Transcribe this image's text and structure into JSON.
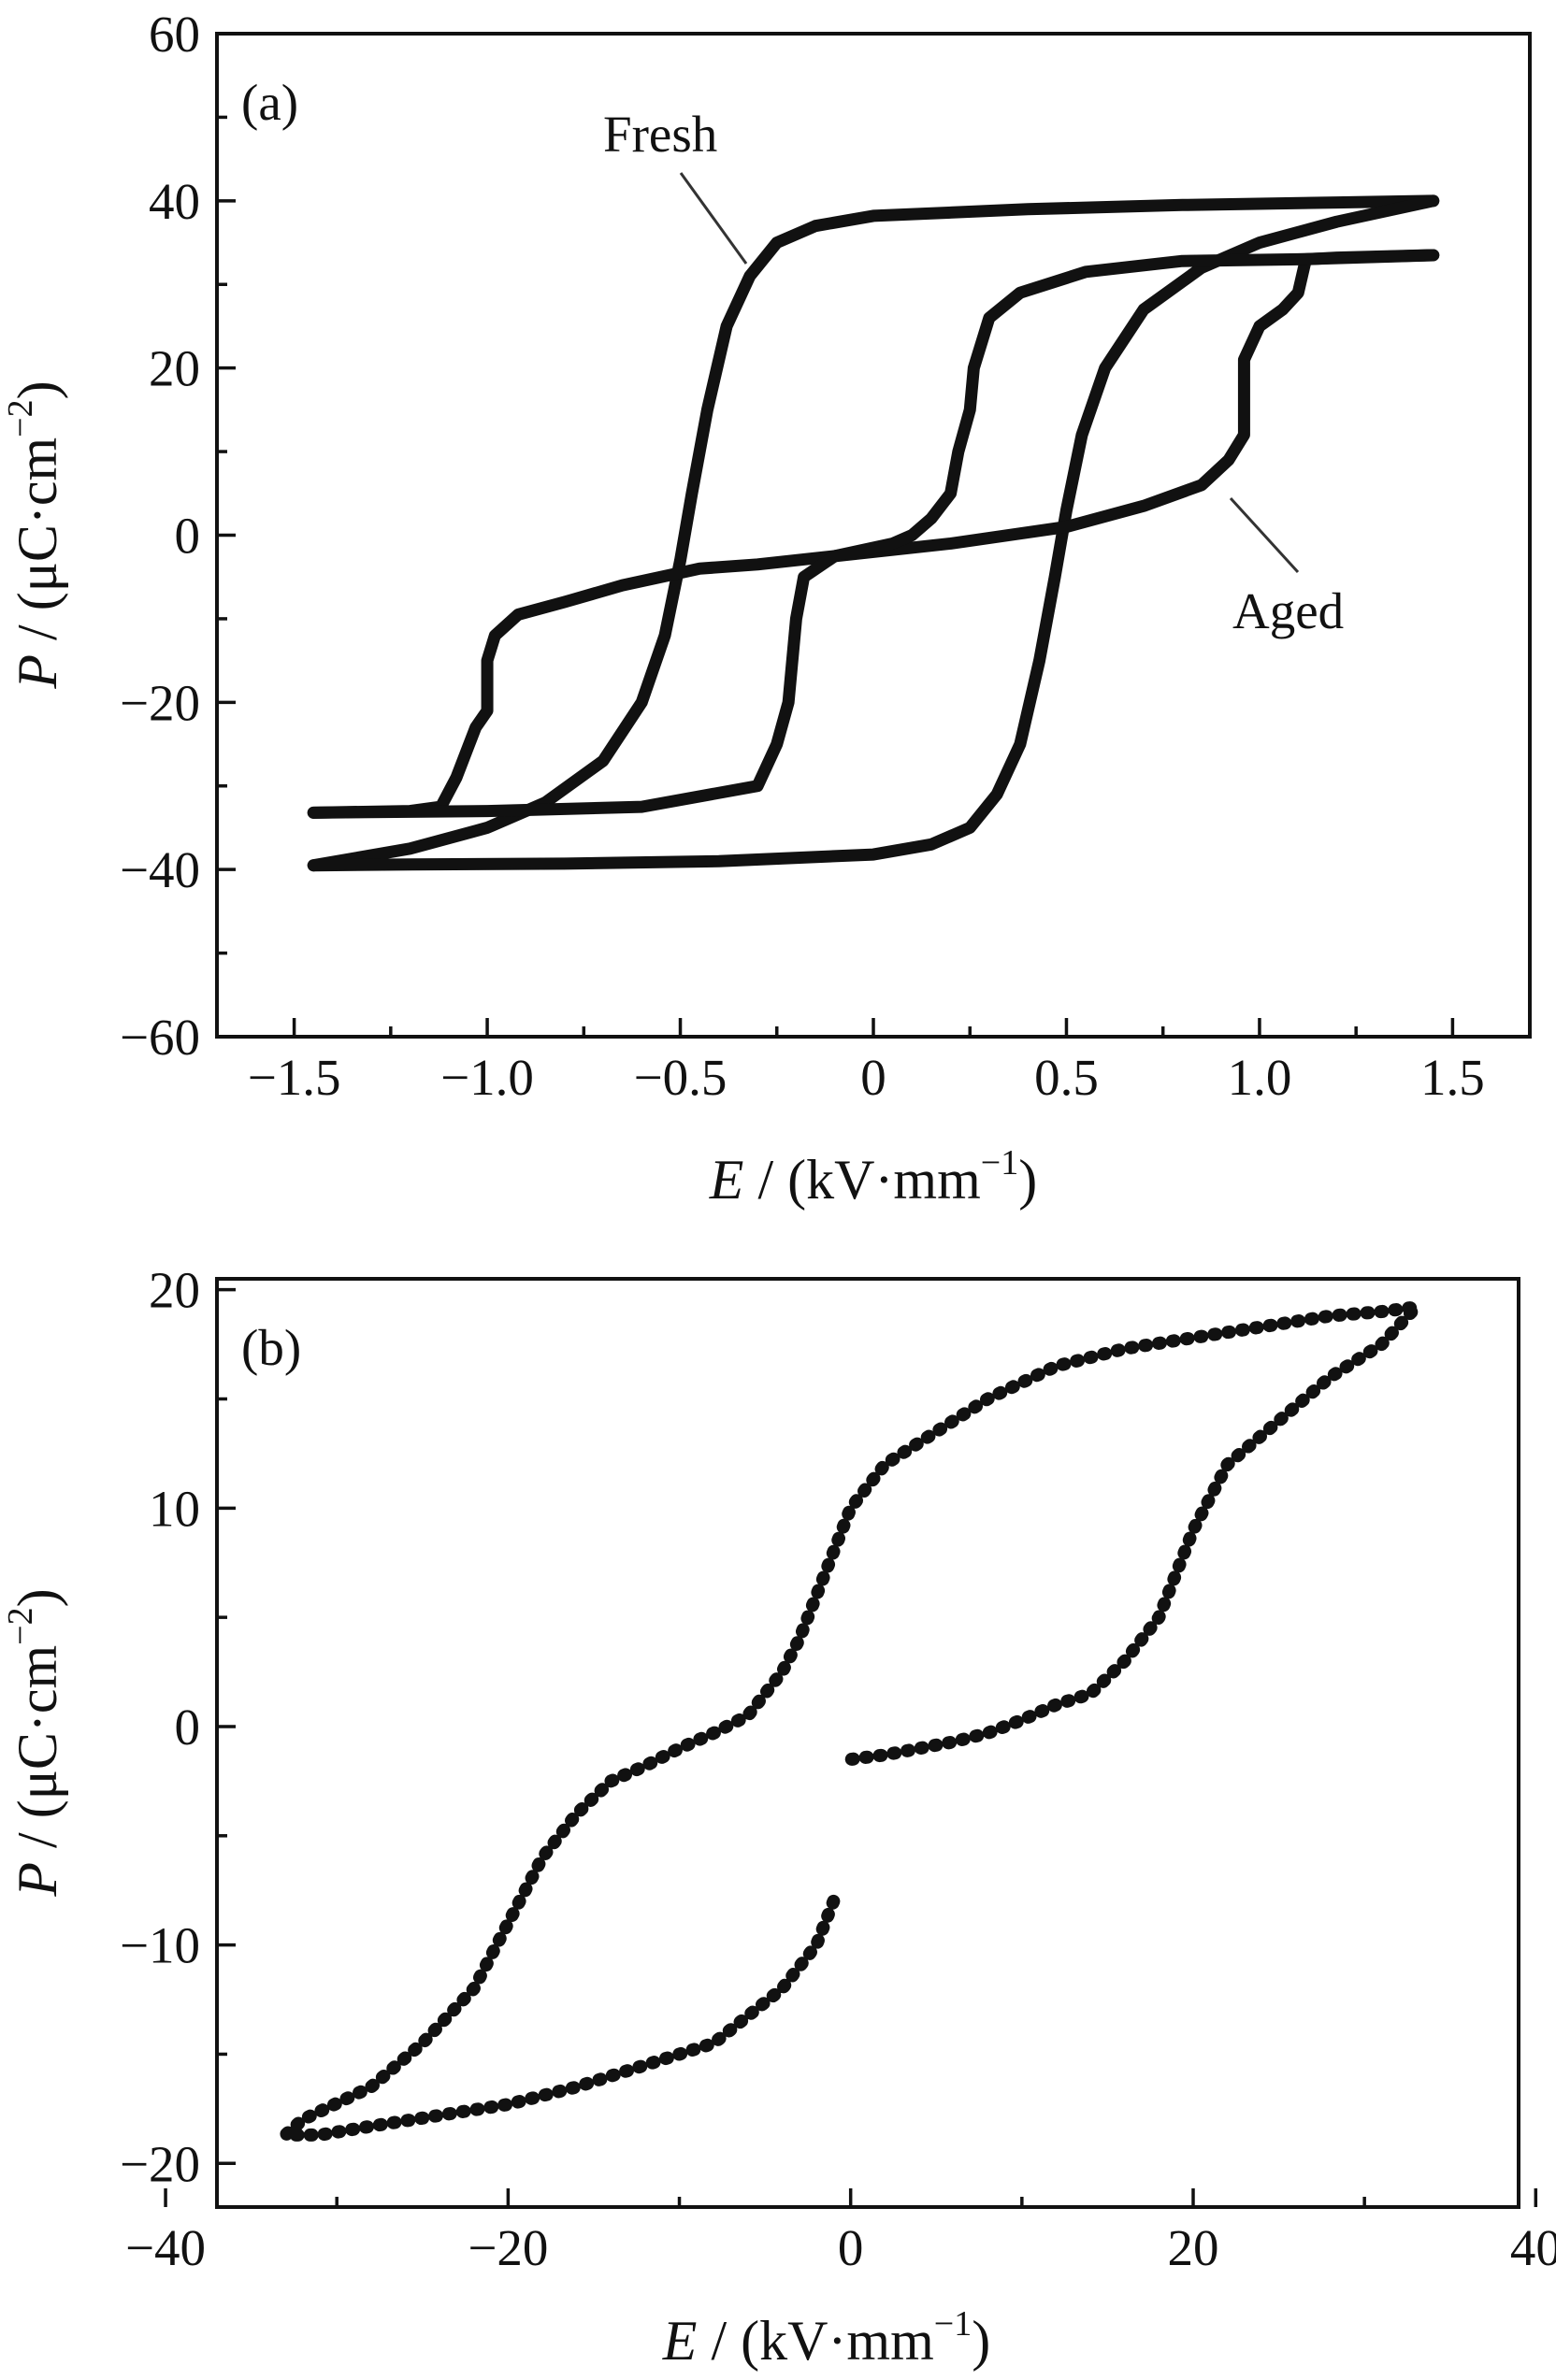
{
  "chart_data": [
    {
      "type": "line",
      "panel_label": "(a)",
      "xlabel": {
        "symbol": "E",
        "unit_open": " / (kV·mm",
        "unit_exp": "−1",
        "unit_close": ")"
      },
      "ylabel": {
        "symbol": "P",
        "unit_open": " / (μC·cm",
        "unit_exp": "−2",
        "unit_close": ")"
      },
      "xlim": [
        -1.7,
        1.7
      ],
      "ylim": [
        -60,
        60
      ],
      "xticks": [
        -1.5,
        -1.0,
        -0.5,
        0,
        0.5,
        1.0,
        1.5
      ],
      "xtick_labels": [
        "−1.5",
        "−1.0",
        "−0.5",
        "0",
        "0.5",
        "1.0",
        "1.5"
      ],
      "yticks": [
        -60,
        -40,
        -20,
        0,
        20,
        40,
        60
      ],
      "ytick_labels": [
        "−60",
        "−40",
        "−20",
        "0",
        "20",
        "40",
        "60"
      ],
      "annotations": [
        {
          "text": "Fresh",
          "target_series": "fresh"
        },
        {
          "text": "Aged",
          "target_series": "aged"
        }
      ],
      "series": [
        {
          "id": "fresh",
          "descending": [
            [
              1.45,
              40
            ],
            [
              1.2,
              39.8
            ],
            [
              0.8,
              39.5
            ],
            [
              0.4,
              39
            ],
            [
              0.0,
              38.2
            ],
            [
              -0.15,
              37
            ],
            [
              -0.25,
              35
            ],
            [
              -0.32,
              31
            ],
            [
              -0.38,
              25
            ],
            [
              -0.43,
              15
            ],
            [
              -0.47,
              5
            ],
            [
              -0.5,
              -3
            ],
            [
              -0.54,
              -12
            ],
            [
              -0.6,
              -20
            ],
            [
              -0.7,
              -27
            ],
            [
              -0.85,
              -32
            ],
            [
              -1.0,
              -35
            ],
            [
              -1.2,
              -37.5
            ],
            [
              -1.45,
              -39.5
            ]
          ],
          "ascending": [
            [
              -1.45,
              -39.5
            ],
            [
              -1.2,
              -39.4
            ],
            [
              -0.8,
              -39.3
            ],
            [
              -0.4,
              -39
            ],
            [
              0.0,
              -38.2
            ],
            [
              0.15,
              -37
            ],
            [
              0.25,
              -35
            ],
            [
              0.32,
              -31
            ],
            [
              0.38,
              -25
            ],
            [
              0.43,
              -15
            ],
            [
              0.47,
              -5
            ],
            [
              0.5,
              3
            ],
            [
              0.54,
              12
            ],
            [
              0.6,
              20
            ],
            [
              0.7,
              27
            ],
            [
              0.85,
              32
            ],
            [
              1.0,
              35
            ],
            [
              1.2,
              37.5
            ],
            [
              1.45,
              40
            ]
          ]
        },
        {
          "id": "aged",
          "descending": [
            [
              1.45,
              33.5
            ],
            [
              1.2,
              33.2
            ],
            [
              1.12,
              33
            ],
            [
              1.1,
              29
            ],
            [
              1.06,
              27
            ],
            [
              1.0,
              25
            ],
            [
              0.96,
              21
            ],
            [
              0.96,
              12
            ],
            [
              0.92,
              9
            ],
            [
              0.85,
              6
            ],
            [
              0.7,
              3.5
            ],
            [
              0.5,
              1
            ],
            [
              0.2,
              -1
            ],
            [
              -0.1,
              -2.5
            ],
            [
              -0.3,
              -3.5
            ],
            [
              -0.45,
              -4
            ],
            [
              -0.5,
              -4.5
            ],
            [
              -0.65,
              -6
            ],
            [
              -0.8,
              -8
            ],
            [
              -0.92,
              -9.5
            ],
            [
              -0.98,
              -12
            ],
            [
              -1.0,
              -15
            ],
            [
              -1.0,
              -21
            ],
            [
              -1.03,
              -23
            ],
            [
              -1.08,
              -29
            ],
            [
              -1.12,
              -32.5
            ],
            [
              -1.2,
              -33
            ],
            [
              -1.45,
              -33.2
            ]
          ],
          "ascending": [
            [
              -1.45,
              -33.2
            ],
            [
              -1.0,
              -33
            ],
            [
              -0.6,
              -32.5
            ],
            [
              -0.3,
              -30
            ],
            [
              -0.25,
              -25
            ],
            [
              -0.22,
              -20
            ],
            [
              -0.2,
              -10
            ],
            [
              -0.18,
              -5
            ],
            [
              -0.1,
              -2.5
            ],
            [
              0.05,
              -1
            ],
            [
              0.1,
              0
            ],
            [
              0.15,
              2
            ],
            [
              0.2,
              5
            ],
            [
              0.22,
              10
            ],
            [
              0.25,
              15
            ],
            [
              0.26,
              20
            ],
            [
              0.3,
              26
            ],
            [
              0.38,
              29
            ],
            [
              0.55,
              31.5
            ],
            [
              0.8,
              32.8
            ],
            [
              1.1,
              33
            ],
            [
              1.45,
              33.5
            ]
          ]
        }
      ]
    },
    {
      "type": "line",
      "panel_label": "(b)",
      "xlabel": {
        "symbol": "E",
        "unit_open": " / (kV·mm",
        "unit_exp": "−1",
        "unit_close": ")"
      },
      "ylabel": {
        "symbol": "P",
        "unit_open": " / (μC·cm",
        "unit_exp": "−2",
        "unit_close": ")"
      },
      "xlim": [
        -37,
        39
      ],
      "ylim": [
        -22,
        20.5
      ],
      "xticks": [
        -40,
        -20,
        0,
        20,
        40
      ],
      "xtick_labels": [
        "−40",
        "−20",
        "0",
        "20",
        "40"
      ],
      "yticks": [
        -20,
        -10,
        0,
        10,
        20
      ],
      "ytick_labels": [
        "−20",
        "−10",
        "0",
        "10",
        "20"
      ],
      "series": [
        {
          "id": "loop",
          "segments": [
            [
              [
                -1,
                -8
              ],
              [
                -2,
                -10
              ],
              [
                -4,
                -12
              ],
              [
                -8,
                -14.5
              ],
              [
                -12,
                -15.5
              ],
              [
                -16,
                -16.5
              ],
              [
                -20,
                -17.3
              ],
              [
                -24,
                -17.8
              ],
              [
                -28,
                -18.3
              ],
              [
                -31,
                -18.7
              ],
              [
                -33,
                -18.7
              ],
              [
                -32,
                -18
              ],
              [
                -28,
                -16.5
              ],
              [
                -25,
                -14.5
              ],
              [
                -22,
                -12
              ],
              [
                -20,
                -9
              ],
              [
                -18,
                -6
              ],
              [
                -16,
                -4
              ],
              [
                -14,
                -2.5
              ],
              [
                -12,
                -1.8
              ],
              [
                -10,
                -1
              ],
              [
                -8,
                -0.3
              ],
              [
                -6,
                0.5
              ],
              [
                -4,
                2.5
              ],
              [
                -3,
                4
              ],
              [
                -2,
                6
              ],
              [
                -1,
                8
              ],
              [
                0,
                10
              ],
              [
                1,
                11
              ],
              [
                2,
                12
              ],
              [
                4,
                13
              ],
              [
                8,
                15
              ],
              [
                12,
                16.5
              ],
              [
                16,
                17.3
              ],
              [
                20,
                17.8
              ],
              [
                24,
                18.3
              ],
              [
                28,
                18.8
              ],
              [
                31,
                19
              ],
              [
                33,
                19.2
              ],
              [
                31,
                17.5
              ],
              [
                28,
                16
              ],
              [
                25,
                14
              ],
              [
                22,
                12
              ],
              [
                20,
                9
              ],
              [
                18,
                5
              ],
              [
                16,
                3
              ],
              [
                14,
                1.5
              ],
              [
                12,
                1
              ],
              [
                10,
                0.3
              ],
              [
                8,
                -0.3
              ],
              [
                6,
                -0.7
              ],
              [
                4,
                -1
              ],
              [
                2,
                -1.3
              ],
              [
                0,
                -1.5
              ]
            ]
          ]
        }
      ]
    }
  ]
}
